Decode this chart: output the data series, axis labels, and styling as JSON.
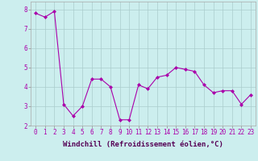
{
  "x": [
    0,
    1,
    2,
    3,
    4,
    5,
    6,
    7,
    8,
    9,
    10,
    11,
    12,
    13,
    14,
    15,
    16,
    17,
    18,
    19,
    20,
    21,
    22,
    23
  ],
  "y": [
    7.8,
    7.6,
    7.9,
    3.1,
    2.5,
    3.0,
    4.4,
    4.4,
    4.0,
    2.3,
    2.3,
    4.1,
    3.9,
    4.5,
    4.6,
    5.0,
    4.9,
    4.8,
    4.1,
    3.7,
    3.8,
    3.8,
    3.1,
    3.6
  ],
  "line_color": "#aa00aa",
  "marker": "D",
  "marker_size": 2.0,
  "bg_color": "#cceeee",
  "grid_color": "#aacccc",
  "xlabel": "Windchill (Refroidissement éolien,°C)",
  "xlabel_fontsize": 6.5,
  "tick_fontsize": 5.5,
  "tick_color": "#aa00aa",
  "label_color": "#550055",
  "ylim": [
    2,
    8.4
  ],
  "xlim": [
    -0.5,
    23.5
  ],
  "yticks": [
    2,
    3,
    4,
    5,
    6,
    7,
    8
  ],
  "xticks": [
    0,
    1,
    2,
    3,
    4,
    5,
    6,
    7,
    8,
    9,
    10,
    11,
    12,
    13,
    14,
    15,
    16,
    17,
    18,
    19,
    20,
    21,
    22,
    23
  ]
}
